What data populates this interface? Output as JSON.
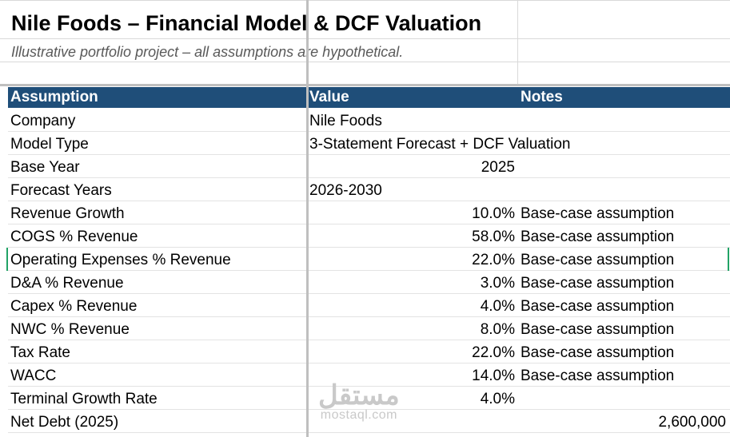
{
  "sheet": {
    "title": "Nile Foods – Financial Model & DCF Valuation",
    "subtitle": "Illustrative portfolio project – all assumptions are hypothetical.",
    "headers": {
      "assumption": "Assumption",
      "value": "Value",
      "notes": "Notes"
    },
    "header_color": "#1f4e79",
    "rows": [
      {
        "label": "Company",
        "value": "Nile Foods",
        "note": ""
      },
      {
        "label": "Model Type",
        "value": "3-Statement Forecast + DCF Valuation",
        "note": ""
      },
      {
        "label": "Base Year",
        "value": "2025",
        "note": ""
      },
      {
        "label": "Forecast Years",
        "value": "2026-2030",
        "note": ""
      },
      {
        "label": "Revenue Growth",
        "value": "10.0%",
        "note": "Base-case assumption"
      },
      {
        "label": "COGS % Revenue",
        "value": "58.0%",
        "note": "Base-case assumption"
      },
      {
        "label": "Operating Expenses % Revenue",
        "value": "22.0%",
        "note": "Base-case assumption"
      },
      {
        "label": "D&A % Revenue",
        "value": "3.0%",
        "note": "Base-case assumption"
      },
      {
        "label": "Capex % Revenue",
        "value": "4.0%",
        "note": "Base-case assumption"
      },
      {
        "label": "NWC % Revenue",
        "value": "8.0%",
        "note": "Base-case assumption"
      },
      {
        "label": "Tax Rate",
        "value": "22.0%",
        "note": "Base-case assumption"
      },
      {
        "label": "WACC",
        "value": "14.0%",
        "note": "Base-case assumption"
      },
      {
        "label": "Terminal Growth Rate",
        "value": "4.0%",
        "note": ""
      },
      {
        "label": "Net Debt (2025)",
        "value": "2,600,000",
        "note": ""
      }
    ]
  },
  "watermark": {
    "arabic": "مستقل",
    "latin": "mostaql.com"
  }
}
